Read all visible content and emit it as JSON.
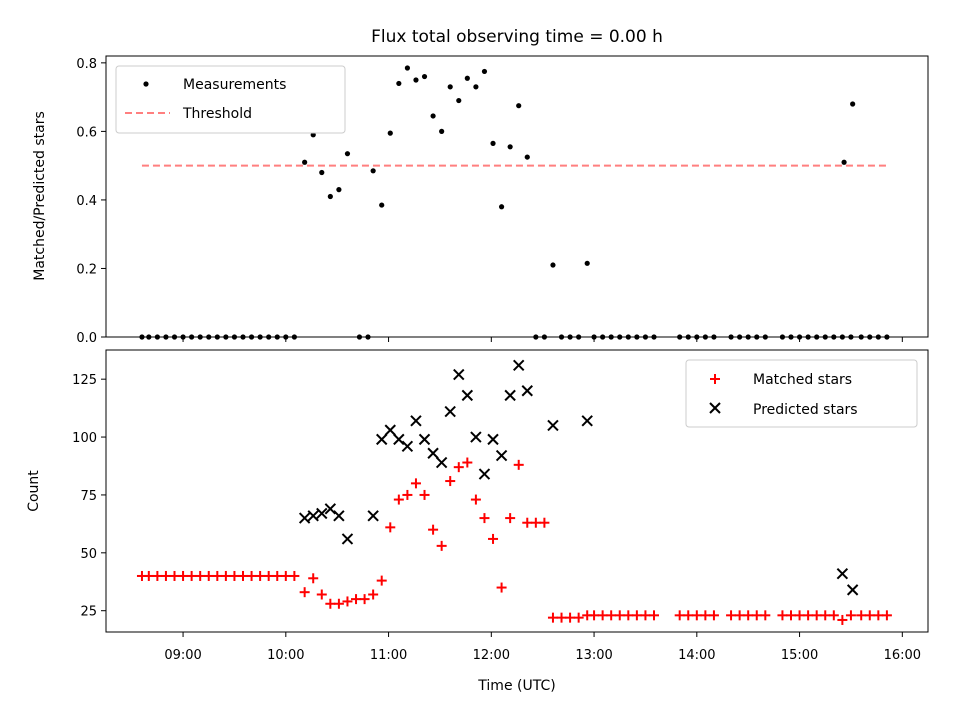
{
  "chart_data": [
    {
      "type": "scatter",
      "title": "Flux total observing time = 0.00 h",
      "xlabel": "",
      "ylabel": "Matched/Predicted stars",
      "xlim": [
        "08:15",
        "16:15"
      ],
      "ylim": [
        0,
        0.82
      ],
      "yticks": [
        0.0,
        0.2,
        0.4,
        0.6,
        0.8
      ],
      "ytick_labels": [
        "0.0",
        "0.2",
        "0.4",
        "0.6",
        "0.8"
      ],
      "xticks": [
        "09:00",
        "10:00",
        "11:00",
        "12:00",
        "13:00",
        "14:00",
        "15:00",
        "16:00"
      ],
      "xtick_labels": [
        "",
        "",
        "",
        "",
        "",
        "",
        "",
        ""
      ],
      "legend_position": "top-left",
      "threshold": {
        "name": "Threshold",
        "value": 0.5,
        "x_range": [
          "08:36",
          "15:51"
        ],
        "color": "#ff7f7f",
        "style": "dashed"
      },
      "series": [
        {
          "name": "Measurements",
          "marker": "dot",
          "color": "#000000",
          "points": [
            [
              "08:36",
              0
            ],
            [
              "08:40",
              0
            ],
            [
              "08:45",
              0
            ],
            [
              "08:50",
              0
            ],
            [
              "08:55",
              0
            ],
            [
              "09:00",
              0
            ],
            [
              "09:05",
              0
            ],
            [
              "09:10",
              0
            ],
            [
              "09:15",
              0
            ],
            [
              "09:20",
              0
            ],
            [
              "09:25",
              0
            ],
            [
              "09:30",
              0
            ],
            [
              "09:35",
              0
            ],
            [
              "09:40",
              0
            ],
            [
              "09:45",
              0
            ],
            [
              "09:50",
              0
            ],
            [
              "09:55",
              0
            ],
            [
              "10:00",
              0
            ],
            [
              "10:05",
              0
            ],
            [
              "10:11",
              0.51
            ],
            [
              "10:16",
              0.59
            ],
            [
              "10:21",
              0.48
            ],
            [
              "10:26",
              0.41
            ],
            [
              "10:31",
              0.43
            ],
            [
              "10:36",
              0.535
            ],
            [
              "10:43",
              0
            ],
            [
              "10:48",
              0
            ],
            [
              "10:51",
              0.485
            ],
            [
              "10:56",
              0.385
            ],
            [
              "11:01",
              0.595
            ],
            [
              "11:06",
              0.74
            ],
            [
              "11:11",
              0.785
            ],
            [
              "11:16",
              0.75
            ],
            [
              "11:21",
              0.76
            ],
            [
              "11:26",
              0.645
            ],
            [
              "11:31",
              0.6
            ],
            [
              "11:36",
              0.73
            ],
            [
              "11:41",
              0.69
            ],
            [
              "11:46",
              0.755
            ],
            [
              "11:51",
              0.73
            ],
            [
              "11:56",
              0.775
            ],
            [
              "12:01",
              0.565
            ],
            [
              "12:06",
              0.38
            ],
            [
              "12:11",
              0.555
            ],
            [
              "12:16",
              0.675
            ],
            [
              "12:21",
              0.525
            ],
            [
              "12:26",
              0
            ],
            [
              "12:31",
              0
            ],
            [
              "12:36",
              0.21
            ],
            [
              "12:41",
              0
            ],
            [
              "12:46",
              0
            ],
            [
              "12:51",
              0
            ],
            [
              "12:56",
              0.215
            ],
            [
              "13:00",
              0
            ],
            [
              "13:05",
              0
            ],
            [
              "13:10",
              0
            ],
            [
              "13:15",
              0
            ],
            [
              "13:20",
              0
            ],
            [
              "13:25",
              0
            ],
            [
              "13:30",
              0
            ],
            [
              "13:35",
              0
            ],
            [
              "13:50",
              0
            ],
            [
              "13:55",
              0
            ],
            [
              "14:00",
              0
            ],
            [
              "14:05",
              0
            ],
            [
              "14:10",
              0
            ],
            [
              "14:20",
              0
            ],
            [
              "14:25",
              0
            ],
            [
              "14:30",
              0
            ],
            [
              "14:35",
              0
            ],
            [
              "14:40",
              0
            ],
            [
              "14:50",
              0
            ],
            [
              "14:55",
              0
            ],
            [
              "15:00",
              0
            ],
            [
              "15:05",
              0
            ],
            [
              "15:10",
              0
            ],
            [
              "15:15",
              0
            ],
            [
              "15:20",
              0
            ],
            [
              "15:25",
              0
            ],
            [
              "15:30",
              0
            ],
            [
              "15:26",
              0.51
            ],
            [
              "15:31",
              0.68
            ],
            [
              "15:36",
              0
            ],
            [
              "15:41",
              0
            ],
            [
              "15:46",
              0
            ],
            [
              "15:51",
              0
            ]
          ]
        }
      ]
    },
    {
      "type": "scatter",
      "title": "",
      "xlabel": "Time (UTC)",
      "ylabel": "Count",
      "xlim": [
        "08:15",
        "16:15"
      ],
      "ylim": [
        15.8,
        137.6
      ],
      "yticks": [
        25,
        50,
        75,
        100,
        125
      ],
      "ytick_labels": [
        "25",
        "50",
        "75",
        "100",
        "125"
      ],
      "xticks": [
        "09:00",
        "10:00",
        "11:00",
        "12:00",
        "13:00",
        "14:00",
        "15:00",
        "16:00"
      ],
      "xtick_labels": [
        "09:00",
        "10:00",
        "11:00",
        "12:00",
        "13:00",
        "14:00",
        "15:00",
        "16:00"
      ],
      "legend_position": "top-right",
      "series": [
        {
          "name": "Matched stars",
          "marker": "plus",
          "color": "#ff0000",
          "points": [
            [
              "08:36",
              40
            ],
            [
              "08:40",
              40
            ],
            [
              "08:45",
              40
            ],
            [
              "08:50",
              40
            ],
            [
              "08:55",
              40
            ],
            [
              "09:00",
              40
            ],
            [
              "09:05",
              40
            ],
            [
              "09:10",
              40
            ],
            [
              "09:15",
              40
            ],
            [
              "09:20",
              40
            ],
            [
              "09:25",
              40
            ],
            [
              "09:30",
              40
            ],
            [
              "09:35",
              40
            ],
            [
              "09:40",
              40
            ],
            [
              "09:45",
              40
            ],
            [
              "09:50",
              40
            ],
            [
              "09:55",
              40
            ],
            [
              "10:00",
              40
            ],
            [
              "10:05",
              40
            ],
            [
              "10:11",
              33
            ],
            [
              "10:16",
              39
            ],
            [
              "10:21",
              32
            ],
            [
              "10:26",
              28
            ],
            [
              "10:31",
              28
            ],
            [
              "10:36",
              29
            ],
            [
              "10:41",
              30
            ],
            [
              "10:46",
              30
            ],
            [
              "10:51",
              32
            ],
            [
              "10:56",
              38
            ],
            [
              "11:01",
              61
            ],
            [
              "11:06",
              73
            ],
            [
              "11:11",
              75
            ],
            [
              "11:16",
              80
            ],
            [
              "11:21",
              75
            ],
            [
              "11:26",
              60
            ],
            [
              "11:31",
              53
            ],
            [
              "11:36",
              81
            ],
            [
              "11:41",
              87
            ],
            [
              "11:46",
              89
            ],
            [
              "11:51",
              73
            ],
            [
              "11:56",
              65
            ],
            [
              "12:01",
              56
            ],
            [
              "12:06",
              35
            ],
            [
              "12:11",
              65
            ],
            [
              "12:16",
              88
            ],
            [
              "12:21",
              63
            ],
            [
              "12:26",
              63
            ],
            [
              "12:31",
              63
            ],
            [
              "12:36",
              22
            ],
            [
              "12:41",
              22
            ],
            [
              "12:46",
              22
            ],
            [
              "12:51",
              22
            ],
            [
              "12:56",
              23
            ],
            [
              "13:00",
              23
            ],
            [
              "13:05",
              23
            ],
            [
              "13:10",
              23
            ],
            [
              "13:15",
              23
            ],
            [
              "13:20",
              23
            ],
            [
              "13:25",
              23
            ],
            [
              "13:30",
              23
            ],
            [
              "13:35",
              23
            ],
            [
              "13:50",
              23
            ],
            [
              "13:55",
              23
            ],
            [
              "14:00",
              23
            ],
            [
              "14:05",
              23
            ],
            [
              "14:10",
              23
            ],
            [
              "14:20",
              23
            ],
            [
              "14:25",
              23
            ],
            [
              "14:30",
              23
            ],
            [
              "14:35",
              23
            ],
            [
              "14:40",
              23
            ],
            [
              "14:50",
              23
            ],
            [
              "14:55",
              23
            ],
            [
              "15:00",
              23
            ],
            [
              "15:05",
              23
            ],
            [
              "15:10",
              23
            ],
            [
              "15:15",
              23
            ],
            [
              "15:20",
              23
            ],
            [
              "15:25",
              21
            ],
            [
              "15:30",
              23
            ],
            [
              "15:36",
              23
            ],
            [
              "15:41",
              23
            ],
            [
              "15:46",
              23
            ],
            [
              "15:51",
              23
            ]
          ]
        },
        {
          "name": "Predicted stars",
          "marker": "x",
          "color": "#000000",
          "points": [
            [
              "10:11",
              65
            ],
            [
              "10:16",
              66
            ],
            [
              "10:21",
              67
            ],
            [
              "10:26",
              69
            ],
            [
              "10:31",
              66
            ],
            [
              "10:36",
              56
            ],
            [
              "10:51",
              66
            ],
            [
              "10:56",
              99
            ],
            [
              "11:01",
              103
            ],
            [
              "11:06",
              99
            ],
            [
              "11:11",
              96
            ],
            [
              "11:16",
              107
            ],
            [
              "11:21",
              99
            ],
            [
              "11:26",
              93
            ],
            [
              "11:31",
              89
            ],
            [
              "11:36",
              111
            ],
            [
              "11:41",
              127
            ],
            [
              "11:46",
              118
            ],
            [
              "11:51",
              100
            ],
            [
              "11:56",
              84
            ],
            [
              "12:01",
              99
            ],
            [
              "12:06",
              92
            ],
            [
              "12:11",
              118
            ],
            [
              "12:16",
              131
            ],
            [
              "12:21",
              120
            ],
            [
              "12:36",
              105
            ],
            [
              "12:56",
              107
            ],
            [
              "15:25",
              41
            ],
            [
              "15:31",
              34
            ]
          ]
        }
      ]
    }
  ]
}
